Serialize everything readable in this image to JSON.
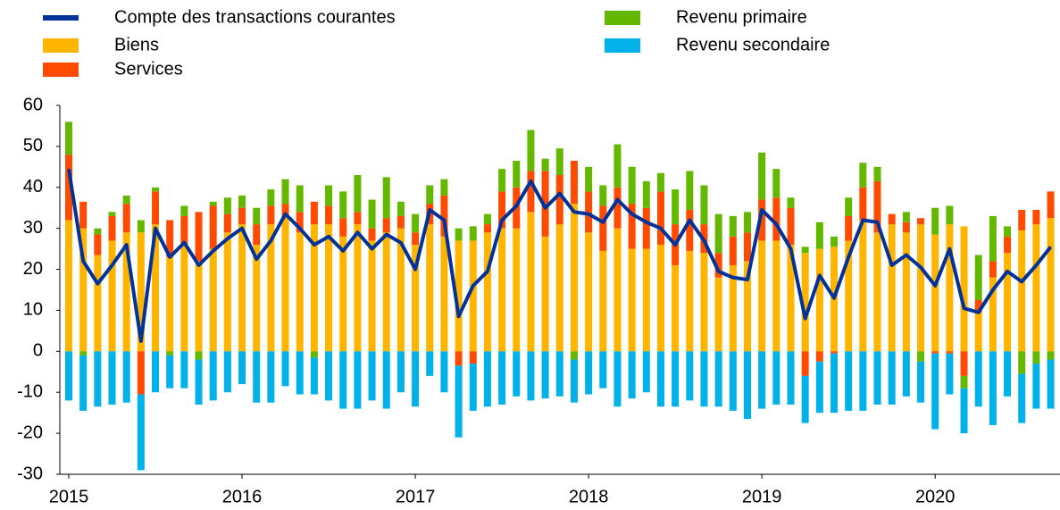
{
  "chart_data": {
    "type": "bar",
    "categories": [
      "2015",
      null,
      null,
      null,
      null,
      null,
      null,
      null,
      null,
      null,
      null,
      null,
      "2016",
      null,
      null,
      null,
      null,
      null,
      null,
      null,
      null,
      null,
      null,
      null,
      "2017",
      null,
      null,
      null,
      null,
      null,
      null,
      null,
      null,
      null,
      null,
      null,
      "2018",
      null,
      null,
      null,
      null,
      null,
      null,
      null,
      null,
      null,
      null,
      null,
      "2019",
      null,
      null,
      null,
      null,
      null,
      null,
      null,
      null,
      null,
      null,
      null,
      "2020",
      null,
      null,
      null,
      null,
      null,
      null,
      null,
      null
    ],
    "ylim": [
      -30,
      60
    ],
    "yticks": [
      -30,
      -20,
      -10,
      0,
      10,
      20,
      30,
      40,
      50,
      60
    ],
    "series": [
      {
        "name": "Compte des transactions courantes",
        "type": "line",
        "color": "#003299",
        "values": [
          44.5,
          22,
          16.5,
          21,
          26,
          2.5,
          30,
          23,
          26.5,
          21,
          24.5,
          27.5,
          30,
          22.5,
          27,
          33.5,
          30,
          26,
          28,
          24.5,
          29,
          25,
          28.5,
          26.5,
          20,
          34.5,
          32,
          8.5,
          16,
          19.5,
          32,
          35.5,
          41.5,
          35,
          38.5,
          34,
          33.5,
          31.5,
          37,
          33.5,
          31.5,
          30,
          26,
          32,
          27,
          19.5,
          18,
          17.5,
          34.5,
          31,
          25,
          8,
          18.5,
          13,
          23,
          32,
          31.5,
          21,
          23.5,
          20.5,
          16,
          25,
          10.5,
          9.5,
          15,
          19.5,
          17,
          21,
          25.5
        ]
      },
      {
        "name": "Biens",
        "type": "bar",
        "color": "#ffb400",
        "values": [
          32,
          30,
          23.5,
          27,
          29,
          29,
          31,
          23,
          26,
          22,
          25,
          29,
          31,
          26,
          31,
          33,
          29,
          31,
          31,
          28,
          31,
          27,
          29,
          30,
          26,
          31,
          28,
          27,
          27,
          29,
          30,
          30,
          34,
          28,
          31,
          36,
          29,
          24.5,
          30,
          25,
          25,
          26,
          21,
          24.5,
          24,
          18,
          21,
          22,
          27,
          27,
          26,
          24,
          25,
          25.5,
          27,
          32,
          29,
          31,
          29,
          31,
          28.5,
          31,
          30.5,
          9.5,
          18,
          24,
          29.5,
          31,
          32.5
        ]
      },
      {
        "name": "Services",
        "type": "bar",
        "color": "#ff4b00",
        "values": [
          16,
          6.5,
          5,
          6,
          7,
          -10.5,
          8,
          9,
          7,
          12,
          10.5,
          4.5,
          4,
          5,
          4.5,
          3,
          5,
          5.5,
          4.5,
          4.5,
          3,
          3,
          3.5,
          3,
          3,
          5,
          10,
          -3.5,
          -3,
          2,
          9,
          10,
          10,
          16,
          12,
          10.5,
          10,
          11,
          10,
          11,
          10,
          13,
          10,
          10,
          7,
          6,
          7,
          7,
          10,
          10.5,
          9,
          -6,
          -2.5,
          -0.5,
          6,
          8,
          12.5,
          2.5,
          2.5,
          1.5,
          -0.5,
          -0.5,
          -6,
          3,
          4,
          4,
          5,
          3.5,
          6.5
        ]
      },
      {
        "name": "Revenu primaire",
        "type": "bar",
        "color": "#65b800",
        "values": [
          8,
          -1,
          1.5,
          1,
          2,
          3,
          1,
          -1,
          2.5,
          -2,
          1,
          4,
          3,
          4,
          4,
          6,
          6.5,
          -1.5,
          5,
          6.5,
          9,
          7,
          10,
          3.5,
          4.5,
          4.5,
          4,
          3,
          3.5,
          2.5,
          5.5,
          6.5,
          10,
          3,
          6.5,
          -2,
          6,
          5,
          10.5,
          9,
          6.5,
          4.5,
          8.5,
          9.5,
          9.5,
          9.5,
          5,
          5,
          11.5,
          7,
          2.5,
          1.5,
          6.5,
          2.5,
          4.5,
          6,
          3.5,
          0,
          2.5,
          -2.5,
          6.5,
          4.5,
          -3,
          11,
          11,
          2.5,
          -5.5,
          -3,
          -2
        ]
      },
      {
        "name": "Revenu secondaire",
        "type": "bar",
        "color": "#00b1ea",
        "values": [
          -12,
          -13.5,
          -13.5,
          -13,
          -12.5,
          -18.5,
          -10,
          -8,
          -9,
          -11,
          -12,
          -10,
          -8,
          -12.5,
          -12.5,
          -8.5,
          -10.5,
          -9,
          -12,
          -14,
          -14,
          -12,
          -14,
          -10,
          -13.5,
          -6,
          -10,
          -17.5,
          -11.5,
          -13.5,
          -13,
          -11,
          -12,
          -11.5,
          -11,
          -10.5,
          -10.5,
          -9,
          -13.5,
          -11.5,
          -10,
          -13.5,
          -13.5,
          -12,
          -13.5,
          -13.5,
          -14.5,
          -16.5,
          -14,
          -13,
          -13,
          -11.5,
          -12.5,
          -14.5,
          -14.5,
          -14.5,
          -13,
          -13,
          -11,
          -10,
          -18.5,
          -10,
          -11,
          -13.5,
          -18,
          -11,
          -12,
          -11,
          -12
        ]
      }
    ]
  }
}
